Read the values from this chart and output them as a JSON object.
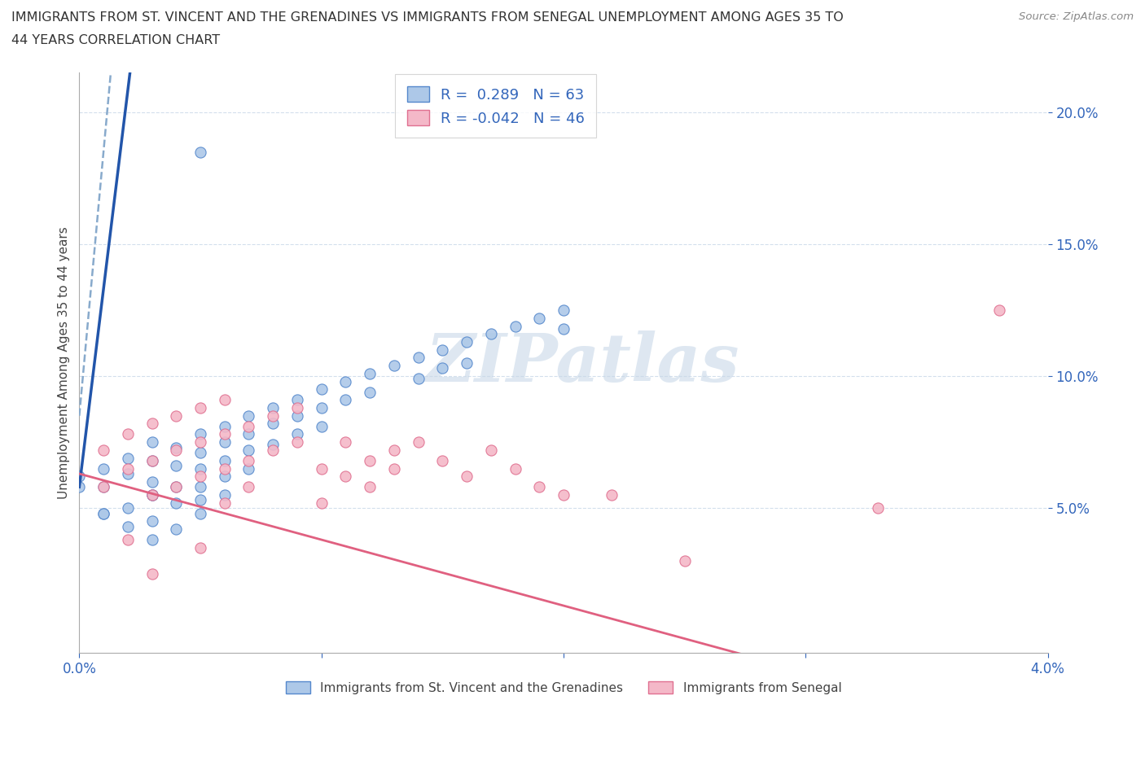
{
  "title_line1": "IMMIGRANTS FROM ST. VINCENT AND THE GRENADINES VS IMMIGRANTS FROM SENEGAL UNEMPLOYMENT AMONG AGES 35 TO",
  "title_line2": "44 YEARS CORRELATION CHART",
  "source": "Source: ZipAtlas.com",
  "ylabel": "Unemployment Among Ages 35 to 44 years",
  "blue_label": "Immigrants from St. Vincent and the Grenadines",
  "pink_label": "Immigrants from Senegal",
  "blue_R": 0.289,
  "blue_N": 63,
  "pink_R": -0.042,
  "pink_N": 46,
  "xlim": [
    0.0,
    0.04
  ],
  "ylim": [
    -0.005,
    0.215
  ],
  "blue_color": "#adc8e8",
  "blue_edge_color": "#5588cc",
  "blue_line_color": "#2255aa",
  "pink_color": "#f4b8c8",
  "pink_edge_color": "#e07090",
  "pink_line_color": "#e06080",
  "dashed_line_color": "#88aacc",
  "blue_x": [
    0.002,
    0.002,
    0.003,
    0.003,
    0.003,
    0.003,
    0.004,
    0.004,
    0.004,
    0.004,
    0.005,
    0.005,
    0.005,
    0.005,
    0.005,
    0.005,
    0.006,
    0.006,
    0.006,
    0.006,
    0.006,
    0.007,
    0.007,
    0.007,
    0.007,
    0.008,
    0.008,
    0.008,
    0.009,
    0.009,
    0.009,
    0.01,
    0.01,
    0.01,
    0.011,
    0.011,
    0.012,
    0.012,
    0.013,
    0.014,
    0.014,
    0.015,
    0.015,
    0.016,
    0.016,
    0.017,
    0.018,
    0.019,
    0.02,
    0.02,
    0.005,
    0.003,
    0.001,
    0.0,
    0.001,
    0.002,
    0.002,
    0.003,
    0.003,
    0.004,
    0.001,
    0.001,
    0.0
  ],
  "blue_y": [
    0.069,
    0.063,
    0.075,
    0.068,
    0.06,
    0.055,
    0.073,
    0.066,
    0.058,
    0.052,
    0.078,
    0.071,
    0.065,
    0.058,
    0.053,
    0.048,
    0.081,
    0.075,
    0.068,
    0.062,
    0.055,
    0.085,
    0.078,
    0.072,
    0.065,
    0.088,
    0.082,
    0.074,
    0.091,
    0.085,
    0.078,
    0.095,
    0.088,
    0.081,
    0.098,
    0.091,
    0.101,
    0.094,
    0.104,
    0.107,
    0.099,
    0.11,
    0.103,
    0.113,
    0.105,
    0.116,
    0.119,
    0.122,
    0.125,
    0.118,
    0.185,
    0.055,
    0.048,
    0.058,
    0.065,
    0.05,
    0.043,
    0.038,
    0.045,
    0.042,
    0.058,
    0.048,
    0.062
  ],
  "pink_x": [
    0.001,
    0.001,
    0.002,
    0.002,
    0.003,
    0.003,
    0.003,
    0.004,
    0.004,
    0.004,
    0.005,
    0.005,
    0.005,
    0.006,
    0.006,
    0.006,
    0.006,
    0.007,
    0.007,
    0.007,
    0.008,
    0.008,
    0.009,
    0.009,
    0.01,
    0.01,
    0.011,
    0.011,
    0.012,
    0.012,
    0.013,
    0.013,
    0.014,
    0.015,
    0.016,
    0.017,
    0.018,
    0.019,
    0.02,
    0.022,
    0.025,
    0.033,
    0.038,
    0.002,
    0.003,
    0.005
  ],
  "pink_y": [
    0.072,
    0.058,
    0.078,
    0.065,
    0.082,
    0.068,
    0.055,
    0.085,
    0.072,
    0.058,
    0.088,
    0.075,
    0.062,
    0.091,
    0.078,
    0.065,
    0.052,
    0.081,
    0.068,
    0.058,
    0.085,
    0.072,
    0.088,
    0.075,
    0.065,
    0.052,
    0.062,
    0.075,
    0.068,
    0.058,
    0.072,
    0.065,
    0.075,
    0.068,
    0.062,
    0.072,
    0.065,
    0.058,
    0.055,
    0.055,
    0.03,
    0.05,
    0.125,
    0.038,
    0.025,
    0.035
  ]
}
